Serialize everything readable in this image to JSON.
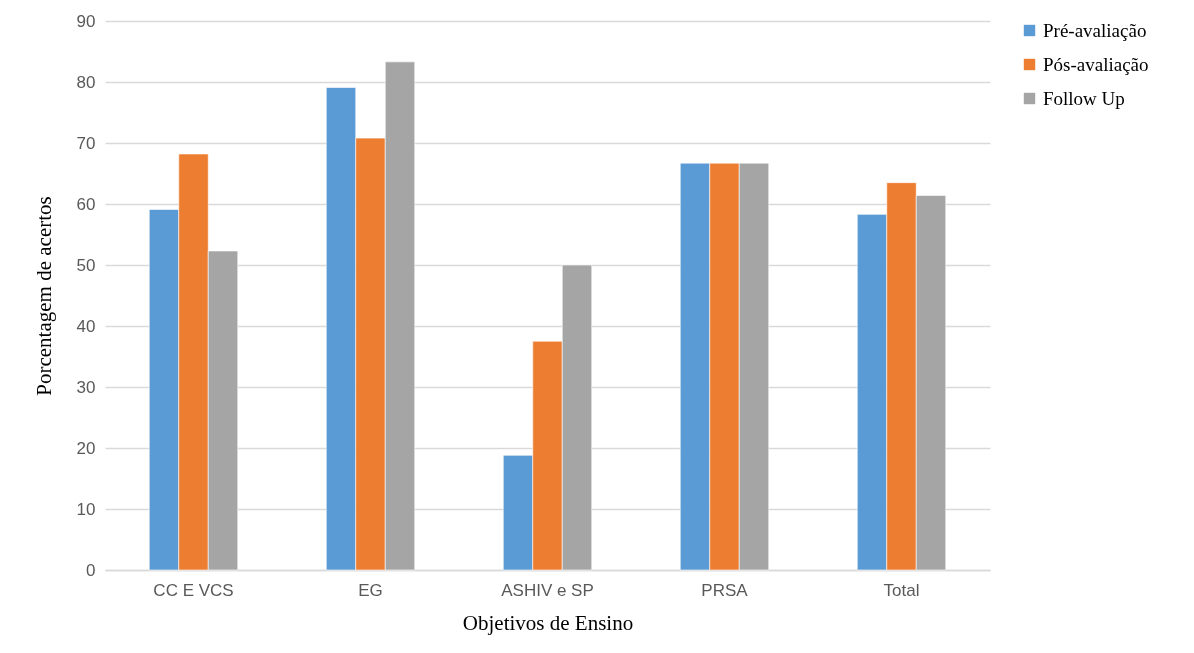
{
  "chart_data": {
    "type": "bar",
    "xlabel": "Objetivos de Ensino",
    "ylabel": "Porcentagem de acertos",
    "categories": [
      "CC E VCS",
      "EG",
      "ASHIV e SP",
      "PRSA",
      "Total"
    ],
    "series": [
      {
        "name": "Pré-avaliação",
        "color": "#5b9bd5",
        "values": [
          59.1,
          79.1,
          18.8,
          66.7,
          58.3
        ]
      },
      {
        "name": "Pós-avaliação",
        "color": "#ed7d31",
        "values": [
          68.2,
          70.8,
          37.5,
          66.7,
          63.5
        ]
      },
      {
        "name": "Follow Up",
        "color": "#a5a5a5",
        "values": [
          52.3,
          83.3,
          50,
          66.7,
          61.4
        ]
      }
    ],
    "ylim": [
      0,
      90
    ],
    "yticks": [
      0,
      10,
      20,
      30,
      40,
      50,
      60,
      70,
      80,
      90
    ],
    "grid": "y",
    "legend": "right"
  }
}
